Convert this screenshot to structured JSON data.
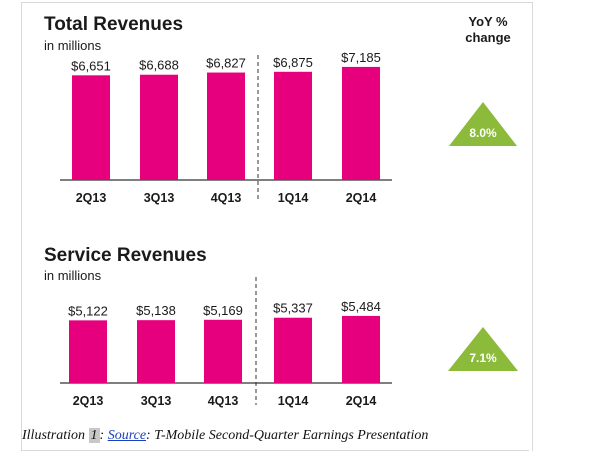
{
  "caption": {
    "prefix": "Illustration ",
    "number": "1",
    "sep": ": ",
    "source_link": "Source",
    "rest": ": T-Mobile Second-Quarter Earnings Presentation"
  },
  "yoy_header": {
    "line1": "YoY %",
    "line2": "change"
  },
  "colors": {
    "bar": "#e6007e",
    "triangle": "#8cba3a",
    "axis": "#333333"
  },
  "chart_data": [
    {
      "type": "bar",
      "title": "Total Revenues",
      "subtitle": "in millions",
      "categories": [
        "2Q13",
        "3Q13",
        "4Q13",
        "1Q14",
        "2Q14"
      ],
      "values": [
        6651,
        6688,
        6827,
        6875,
        7185
      ],
      "value_labels": [
        "$6,651",
        "$6,688",
        "$6,827",
        "$6,875",
        "$7,185"
      ],
      "yoy_change": "8.0%"
    },
    {
      "type": "bar",
      "title": "Service Revenues",
      "subtitle": "in millions",
      "categories": [
        "2Q13",
        "3Q13",
        "4Q13",
        "1Q14",
        "2Q14"
      ],
      "values": [
        5122,
        5138,
        5169,
        5337,
        5484
      ],
      "value_labels": [
        "$5,122",
        "$5,138",
        "$5,169",
        "$5,337",
        "$5,484"
      ],
      "yoy_change": "7.1%"
    }
  ]
}
